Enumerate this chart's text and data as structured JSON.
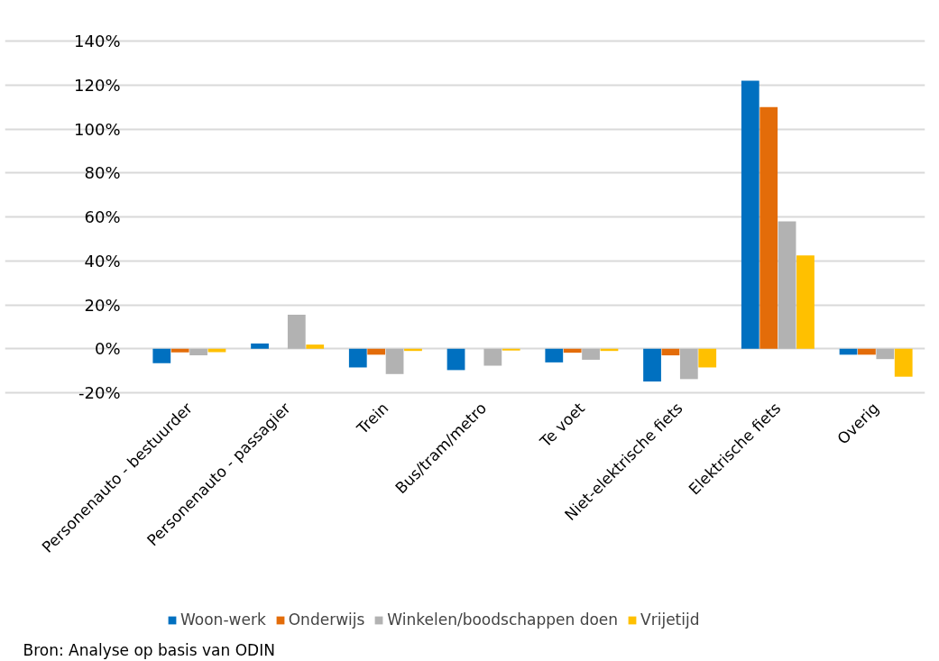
{
  "chart_data": {
    "type": "bar",
    "categories": [
      "Personenauto - bestuurder",
      "Personenauto - passagier",
      "Trein",
      "Bus/tram/metro",
      "Te voet",
      "Niet-elektrische fiets",
      "Elektrische fiets",
      "Overig"
    ],
    "series": [
      {
        "name": "Woon-werk",
        "color": "#0070c0",
        "values": [
          -6.6,
          2.4,
          -8.5,
          -9.7,
          -6.2,
          -14.9,
          122,
          -2.7
        ]
      },
      {
        "name": "Onderwijs",
        "color": "#e36c09",
        "values": [
          -1.6,
          0,
          -2.7,
          0,
          -1.8,
          -3,
          110,
          -2.7
        ]
      },
      {
        "name": "Winkelen/boodschappen doen",
        "color": "#b2b2b2",
        "values": [
          -3,
          15.5,
          -11.5,
          -7.7,
          -5,
          -13.8,
          58,
          -4.7
        ]
      },
      {
        "name": "Vrijetijd",
        "color": "#ffc000",
        "values": [
          -1.5,
          1.9,
          -1,
          -0.8,
          -1,
          -8.5,
          42.5,
          -12.7
        ]
      }
    ],
    "ylim": [
      -20,
      140
    ],
    "yticks": [
      {
        "value": -20,
        "label": "-20%"
      },
      {
        "value": 0,
        "label": "0%"
      },
      {
        "value": 20,
        "label": "20%"
      },
      {
        "value": 40,
        "label": "40%"
      },
      {
        "value": 60,
        "label": "60%"
      },
      {
        "value": 80,
        "label": "80%"
      },
      {
        "value": 100,
        "label": "100%"
      },
      {
        "value": 120,
        "label": "120%"
      },
      {
        "value": 140,
        "label": "140%"
      }
    ],
    "grid": "y",
    "legend": "bottom",
    "annotations": [
      "Bron: Analyse op basis van ODIN"
    ]
  }
}
